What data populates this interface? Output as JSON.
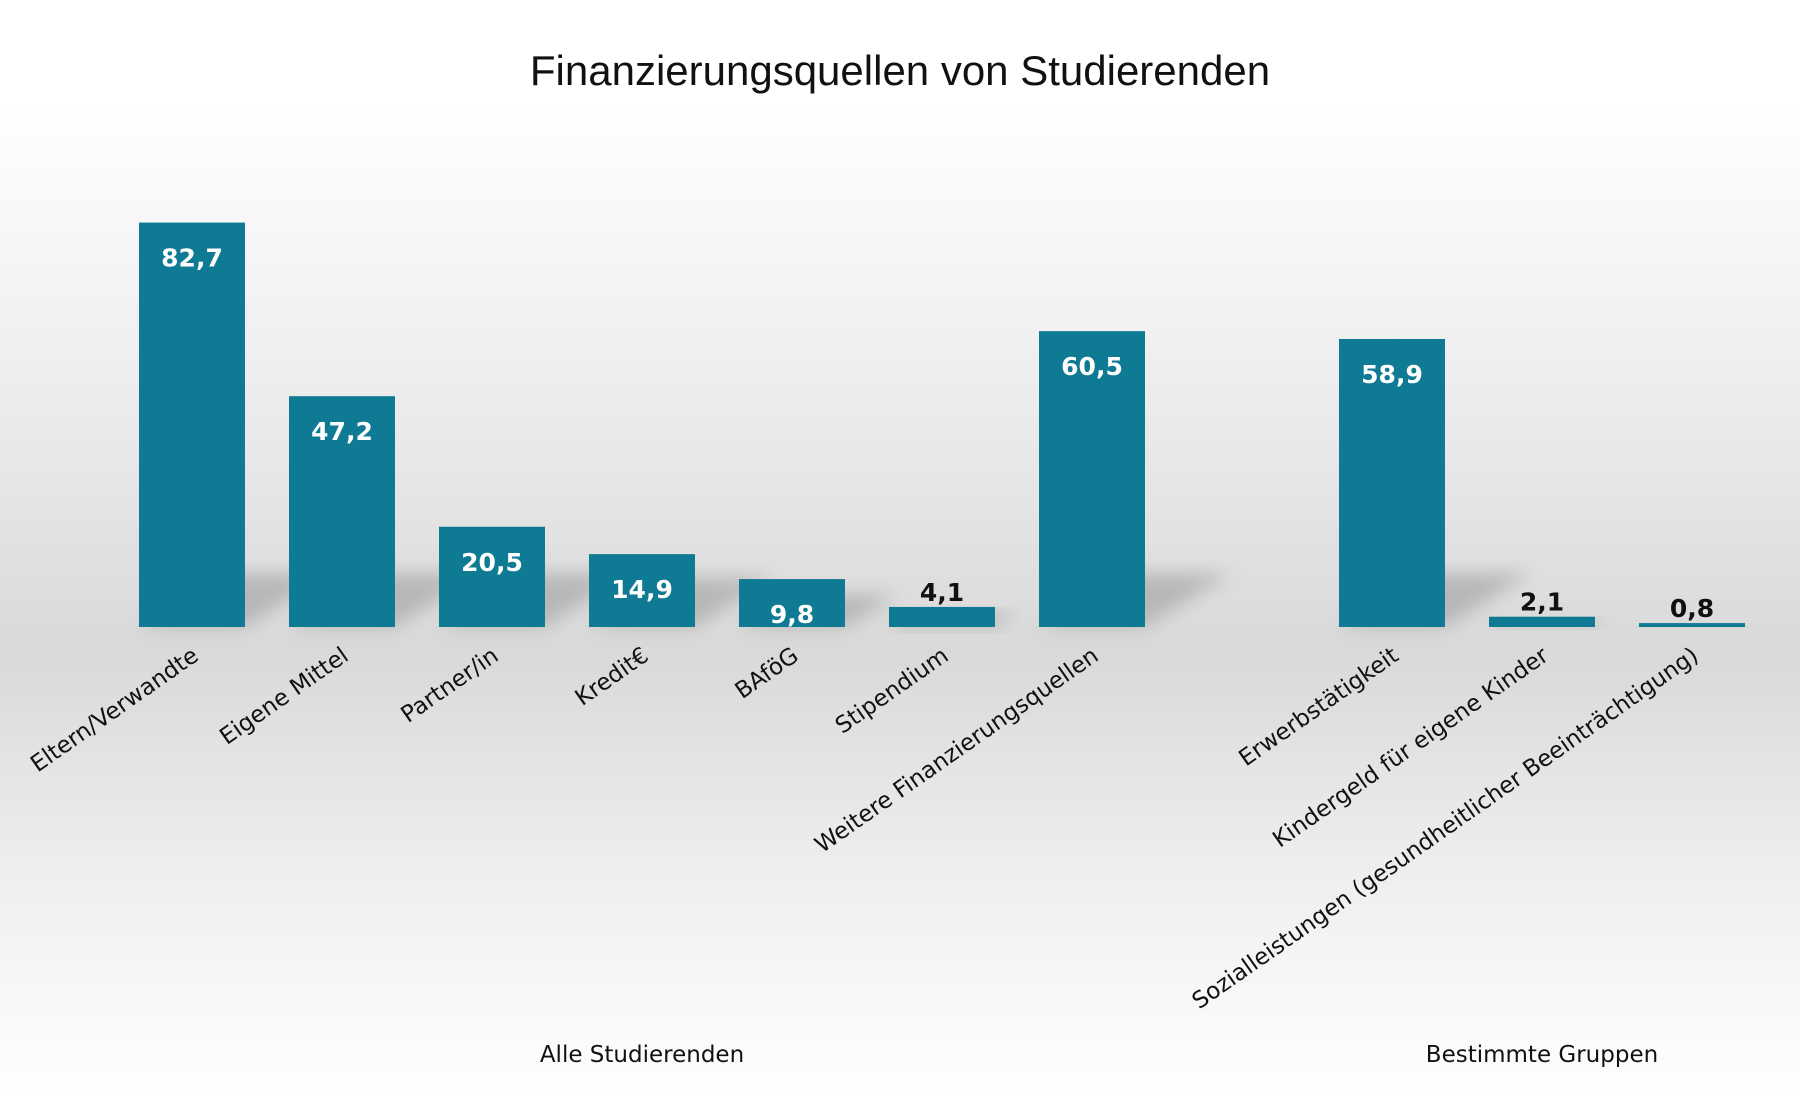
{
  "chart_data": {
    "type": "bar",
    "title": "Finanzierungsquellen von Studierenden",
    "bar_color": "#0e7a93",
    "value_label_inside_color": "#ffffff",
    "value_label_outside_color": "#111111",
    "grid": false,
    "legend": "none",
    "ylim": [
      0,
      100
    ],
    "groups": [
      {
        "label": "Alle Studierenden",
        "categories": [
          "Eltern/Verwandte",
          "Eigene Mittel",
          "Partner/in",
          "Kredit€",
          "BAföG",
          "Stipendium",
          "Weitere Finanzierungsquellen"
        ],
        "values": [
          82.7,
          47.2,
          20.5,
          14.9,
          9.8,
          4.1,
          60.5
        ],
        "value_labels": [
          "82,7",
          "47,2",
          "20,5",
          "14,9",
          "9,8",
          "4,1",
          "60,5"
        ]
      },
      {
        "label": "Bestimmte Gruppen",
        "categories": [
          "Erwerbstätigkeit",
          "Kindergeld für eigene Kinder",
          "Sozialleistungen (gesundheitlicher Beeinträchtigung)"
        ],
        "values": [
          58.9,
          2.1,
          0.8
        ],
        "value_labels": [
          "58,9",
          "2,1",
          "0,8"
        ]
      }
    ]
  }
}
